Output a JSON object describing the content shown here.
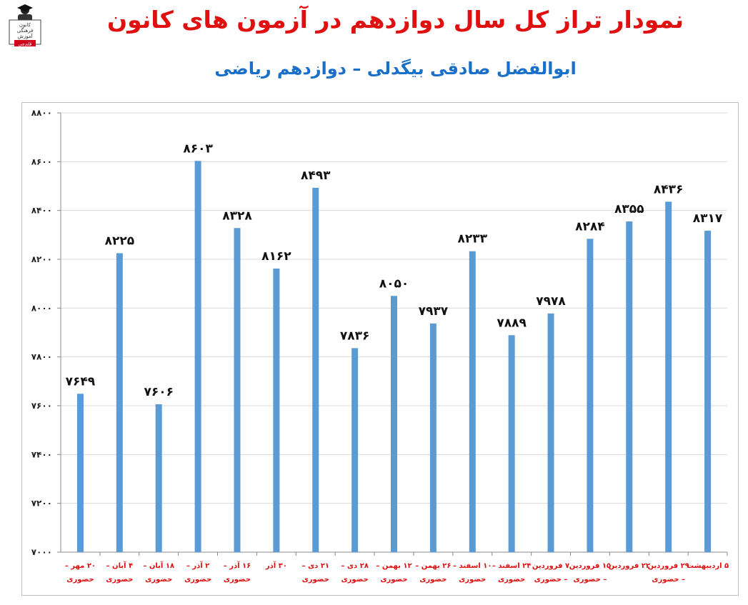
{
  "header": {
    "title": "نمودار تراز کل سال دوازدهم در آزمون های کانون",
    "subtitle": "ابوالفضل صادقی بیگدلی – دوازدهم ریاضی",
    "logo_lines": [
      "کانون",
      "فرهنگی",
      "آموزش",
      "قلم‌چی"
    ]
  },
  "colors": {
    "bar": "#5b9bd5",
    "title": "#e01010",
    "subtitle": "#1a6fc9",
    "category_label": "#e01010",
    "grid": "#d9d9d9"
  },
  "chart_data": {
    "type": "bar",
    "categories": [
      [
        "۲۰ مهر –",
        "حضوری"
      ],
      [
        "۴ آبان –",
        "حضوری"
      ],
      [
        "۱۸ آبان –",
        "حضوری"
      ],
      [
        "۲ آذر –",
        "حضوری"
      ],
      [
        "۱۶ آذر –",
        "حضوری"
      ],
      [
        "۳۰ آذر"
      ],
      [
        "۲۱ دی –",
        "حضوری"
      ],
      [
        "۲۸ دی –",
        "حضوری"
      ],
      [
        "۱۲ بهمن –",
        "حضوری"
      ],
      [
        "۲۶ بهمن –",
        "حضوری"
      ],
      [
        "۱۰ اسفند –",
        "حضوری"
      ],
      [
        "۲۴ اسفند –",
        "حضوری"
      ],
      [
        "۷ فروردین",
        "– حضوری"
      ],
      [
        "۱۵ فروردین",
        "– حضوری"
      ],
      [
        "۲۲ فروردین"
      ],
      [
        "۲۹ فروردین",
        "– حضوری"
      ],
      [
        "۵ اردیبهشت"
      ]
    ],
    "values": [
      7649,
      8225,
      7606,
      8603,
      8328,
      8162,
      8493,
      7836,
      8050,
      7937,
      8233,
      7889,
      7978,
      8284,
      8355,
      8436,
      8317
    ],
    "value_labels": [
      "۷۶۴۹",
      "۸۲۲۵",
      "۷۶۰۶",
      "۸۶۰۳",
      "۸۳۲۸",
      "۸۱۶۲",
      "۸۴۹۳",
      "۷۸۳۶",
      "۸۰۵۰",
      "۷۹۳۷",
      "۸۲۳۳",
      "۷۸۸۹",
      "۷۹۷۸",
      "۸۲۸۴",
      "۸۳۵۵",
      "۸۴۳۶",
      "۸۳۱۷"
    ],
    "ylim": [
      7000,
      8800
    ],
    "yticks": [
      7000,
      7200,
      7400,
      7600,
      7800,
      8000,
      8200,
      8400,
      8600,
      8800
    ],
    "ytick_labels": [
      "۷۰۰۰",
      "۷۲۰۰",
      "۷۴۰۰",
      "۷۶۰۰",
      "۷۸۰۰",
      "۸۰۰۰",
      "۸۲۰۰",
      "۸۴۰۰",
      "۸۶۰۰",
      "۸۸۰۰"
    ],
    "grid": true,
    "legend": "none",
    "title": "",
    "xlabel": "",
    "ylabel": ""
  }
}
